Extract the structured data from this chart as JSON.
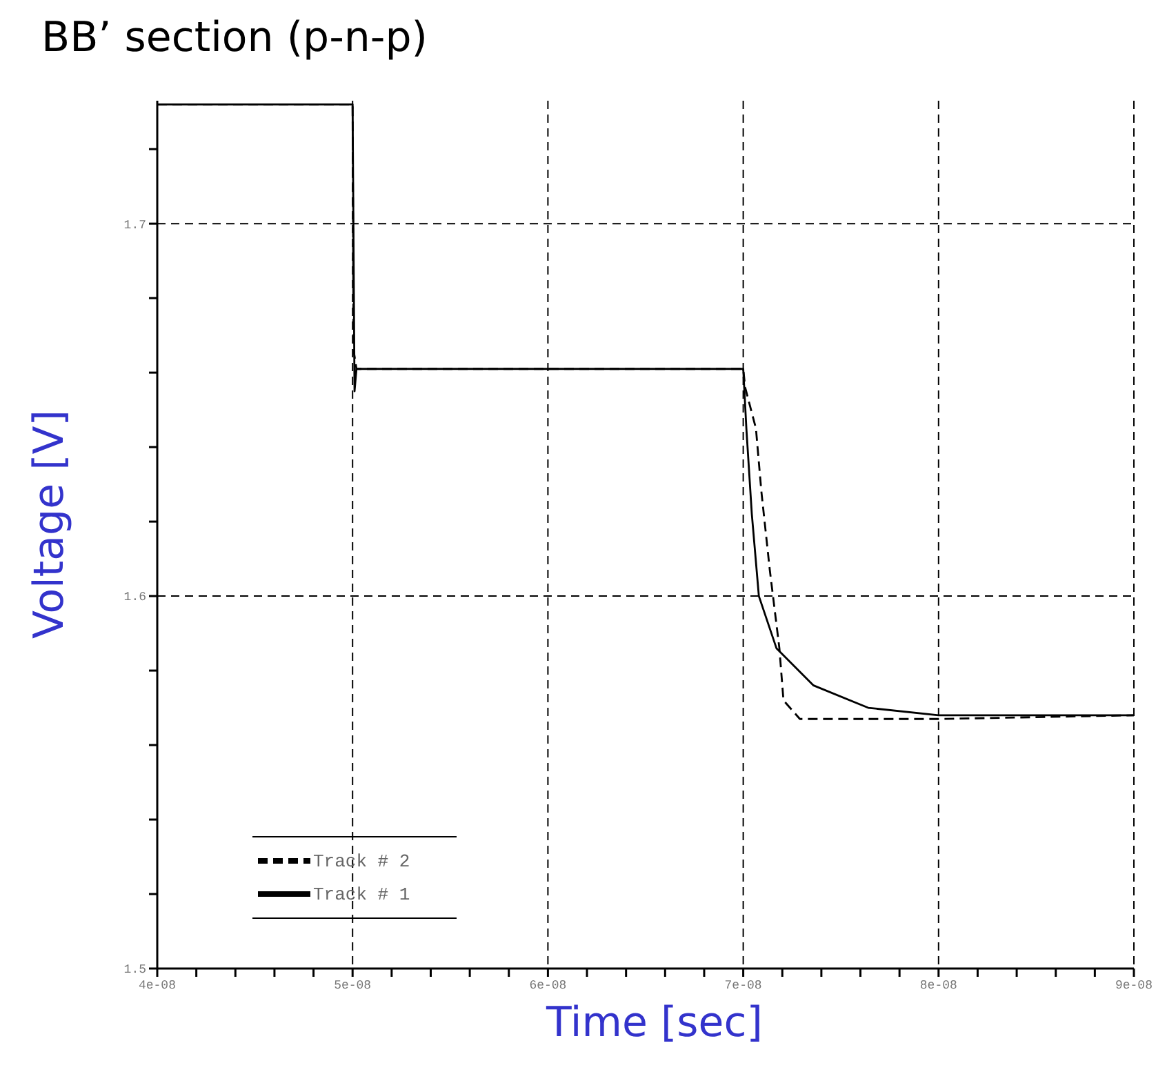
{
  "chart_data": {
    "type": "line",
    "title": "BB’ section (p-n-p)",
    "xlabel": "Time [sec]",
    "ylabel": "Voltage [V]",
    "xlim": [
      4e-08,
      9e-08
    ],
    "xticks": [
      {
        "value": 4e-08,
        "label": "4e-08"
      },
      {
        "value": 4.2e-08,
        "label": null
      },
      {
        "value": 4.4e-08,
        "label": null
      },
      {
        "value": 4.6e-08,
        "label": null
      },
      {
        "value": 4.8e-08,
        "label": null
      },
      {
        "value": 5e-08,
        "label": "5e-08"
      },
      {
        "value": 5.2e-08,
        "label": null
      },
      {
        "value": 5.4e-08,
        "label": null
      },
      {
        "value": 5.6e-08,
        "label": null
      },
      {
        "value": 5.8e-08,
        "label": null
      },
      {
        "value": 6e-08,
        "label": "6e-08"
      },
      {
        "value": 6.2e-08,
        "label": null
      },
      {
        "value": 6.4e-08,
        "label": null
      },
      {
        "value": 6.6e-08,
        "label": null
      },
      {
        "value": 6.8e-08,
        "label": null
      },
      {
        "value": 7e-08,
        "label": "7e-08"
      },
      {
        "value": 7.2e-08,
        "label": null
      },
      {
        "value": 7.4e-08,
        "label": null
      },
      {
        "value": 7.6e-08,
        "label": null
      },
      {
        "value": 7.8e-08,
        "label": null
      },
      {
        "value": 8e-08,
        "label": "8e-08"
      },
      {
        "value": 8.2e-08,
        "label": null
      },
      {
        "value": 8.4e-08,
        "label": null
      },
      {
        "value": 8.6e-08,
        "label": null
      },
      {
        "value": 8.8e-08,
        "label": null
      },
      {
        "value": 9e-08,
        "label": "9e-08"
      }
    ],
    "ylim": [
      1.5,
      1.733
    ],
    "yticks": [
      1.5,
      {
        "value": 1.52,
        "label": null
      },
      {
        "value": 1.54,
        "label": null
      },
      {
        "value": 1.56,
        "label": null
      },
      {
        "value": 1.58,
        "label": null
      },
      1.6,
      {
        "value": 1.62,
        "label": null
      },
      {
        "value": 1.64,
        "label": null
      },
      {
        "value": 1.66,
        "label": null
      },
      {
        "value": 1.68,
        "label": null
      },
      1.7,
      {
        "value": 1.72,
        "label": null
      }
    ],
    "grid": true,
    "legend": "bottom left",
    "marker": "none",
    "series": [
      {
        "name": "Track # 2",
        "color": "#000000",
        "line_style": "dashed",
        "x": [
          4e-08,
          5e-08,
          5.005e-08,
          5.02e-08,
          7e-08,
          7.01e-08,
          7.065e-08,
          7.093e-08,
          7.136e-08,
          7.185e-08,
          7.206e-08,
          7.29e-08,
          8e-08,
          9e-08
        ],
        "values": [
          1.732,
          1.732,
          1.666,
          1.661,
          1.661,
          1.656,
          1.645,
          1.628,
          1.607,
          1.586,
          1.572,
          1.567,
          1.567,
          1.568
        ]
      },
      {
        "name": "Track # 1",
        "color": "#000000",
        "line_style": "solid",
        "x": [
          4e-08,
          5e-08,
          5.01e-08,
          5.02e-08,
          7e-08,
          7.016e-08,
          7.044e-08,
          7.08e-08,
          7.17e-08,
          7.36e-08,
          7.64e-08,
          8e-08,
          9e-08
        ],
        "values": [
          1.732,
          1.732,
          1.655,
          1.661,
          1.661,
          1.645,
          1.622,
          1.6,
          1.586,
          1.576,
          1.57,
          1.568,
          1.568
        ]
      }
    ]
  }
}
